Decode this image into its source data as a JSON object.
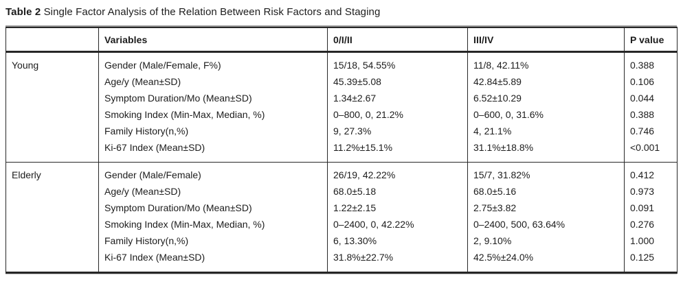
{
  "title": {
    "label": "Table 2",
    "text": "Single Factor Analysis of the Relation Between Risk Factors and Staging"
  },
  "table": {
    "headers": [
      "",
      "Variables",
      "0/I/II",
      "III/IV",
      "P value"
    ],
    "groups": [
      {
        "name": "Young",
        "rows": [
          [
            "Gender (Male/Female, F%)",
            "15/18, 54.55%",
            "11/8, 42.11%",
            "0.388"
          ],
          [
            "Age/y (Mean±SD)",
            "45.39±5.08",
            "42.84±5.89",
            "0.106"
          ],
          [
            "Symptom Duration/Mo (Mean±SD)",
            "1.34±2.67",
            "6.52±10.29",
            "0.044"
          ],
          [
            "Smoking Index (Min-Max, Median, %)",
            "0–800, 0, 21.2%",
            "0–600, 0, 31.6%",
            "0.388"
          ],
          [
            "Family History(n,%)",
            "9, 27.3%",
            "4, 21.1%",
            "0.746"
          ],
          [
            "Ki-67 Index (Mean±SD)",
            "11.2%±15.1%",
            "31.1%±18.8%",
            "<0.001"
          ]
        ]
      },
      {
        "name": "Elderly",
        "rows": [
          [
            "Gender (Male/Female)",
            "26/19, 42.22%",
            "15/7, 31.82%",
            "0.412"
          ],
          [
            "Age/y (Mean±SD)",
            "68.0±5.18",
            "68.0±5.16",
            "0.973"
          ],
          [
            "Symptom Duration/Mo (Mean±SD)",
            "1.22±2.15",
            "2.75±3.82",
            "0.091"
          ],
          [
            "Smoking Index (Min-Max, Median, %)",
            "0–2400, 0, 42.22%",
            "0–2400, 500, 63.64%",
            "0.276"
          ],
          [
            "Family History(n,%)",
            "6, 13.30%",
            "2, 9.10%",
            "1.000"
          ],
          [
            "Ki-67 Index (Mean±SD)",
            "31.8%±22.7%",
            "42.5%±24.0%",
            "0.125"
          ]
        ]
      }
    ]
  },
  "colors": {
    "text": "#1c1c1c",
    "border_dark": "#262626",
    "border_grey": "#9a9a9a",
    "background": "#ffffff"
  }
}
